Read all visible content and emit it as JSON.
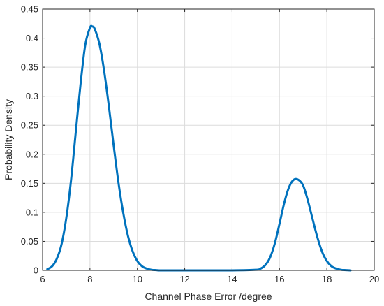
{
  "chart_data": {
    "type": "line",
    "title": "",
    "xlabel": "Channel Phase Error /degree",
    "ylabel": "Probability Density",
    "xlim": [
      6,
      20
    ],
    "ylim": [
      0,
      0.45
    ],
    "grid": true,
    "xticks": [
      6,
      8,
      10,
      12,
      14,
      16,
      18,
      20
    ],
    "xtick_labels": [
      "6",
      "8",
      "10",
      "12",
      "14",
      "16",
      "18",
      "20"
    ],
    "yticks": [
      0,
      0.05,
      0.1,
      0.15,
      0.2,
      0.25,
      0.3,
      0.35,
      0.4,
      0.45
    ],
    "ytick_labels": [
      "0",
      "0.05",
      "0.1",
      "0.15",
      "0.2",
      "0.25",
      "0.3",
      "0.35",
      "0.4",
      "0.45"
    ],
    "series": [
      {
        "color": "#0072bd",
        "x": [
          6.2,
          6.4,
          6.6,
          6.8,
          7.0,
          7.2,
          7.4,
          7.6,
          7.8,
          8.0,
          8.1,
          8.2,
          8.4,
          8.6,
          8.8,
          9.0,
          9.2,
          9.4,
          9.6,
          9.8,
          10.0,
          10.2,
          10.4,
          10.6,
          10.8,
          11.0,
          12.0,
          13.0,
          14.0,
          15.0,
          15.2,
          15.4,
          15.6,
          15.8,
          16.0,
          16.2,
          16.4,
          16.6,
          16.8,
          17.0,
          17.2,
          17.4,
          17.6,
          17.8,
          18.0,
          18.2,
          18.4,
          18.6,
          18.8,
          19.0
        ],
        "y": [
          0.002,
          0.007,
          0.02,
          0.045,
          0.09,
          0.155,
          0.238,
          0.32,
          0.388,
          0.418,
          0.42,
          0.416,
          0.39,
          0.343,
          0.282,
          0.215,
          0.152,
          0.1,
          0.06,
          0.033,
          0.016,
          0.007,
          0.003,
          0.001,
          0.0005,
          0.0,
          0.0,
          0.0,
          0.0,
          0.001,
          0.003,
          0.009,
          0.022,
          0.046,
          0.08,
          0.116,
          0.143,
          0.156,
          0.156,
          0.146,
          0.12,
          0.088,
          0.057,
          0.032,
          0.016,
          0.007,
          0.003,
          0.001,
          0.0005,
          0.0
        ]
      }
    ]
  }
}
